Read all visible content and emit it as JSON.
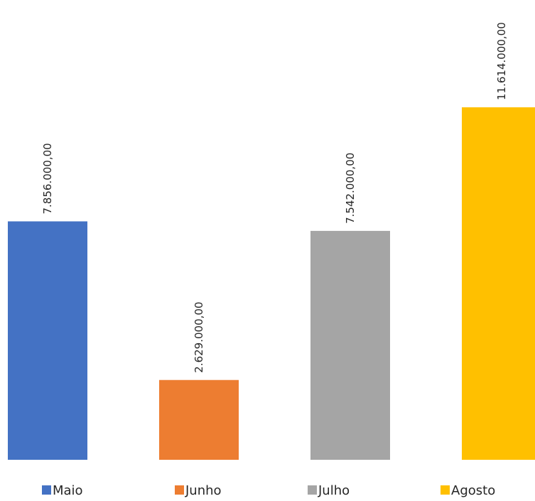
{
  "chart_data": {
    "type": "bar",
    "categories": [
      "Maio",
      "Junho",
      "Julho",
      "Agosto"
    ],
    "values": [
      7856000,
      2629000,
      7542000,
      11614000
    ],
    "data_labels": [
      "7.856.000,00",
      "2.629.000,00",
      "7.542.000,00",
      "11.614.000,00"
    ],
    "colors": [
      "#4472C4",
      "#ED7D31",
      "#A5A5A5",
      "#FFC000"
    ],
    "ylim": [
      0,
      11614000
    ],
    "grid": false,
    "legend_position": "bottom",
    "legend": [
      "Maio",
      "Junho",
      "Julho",
      "Agosto"
    ]
  }
}
